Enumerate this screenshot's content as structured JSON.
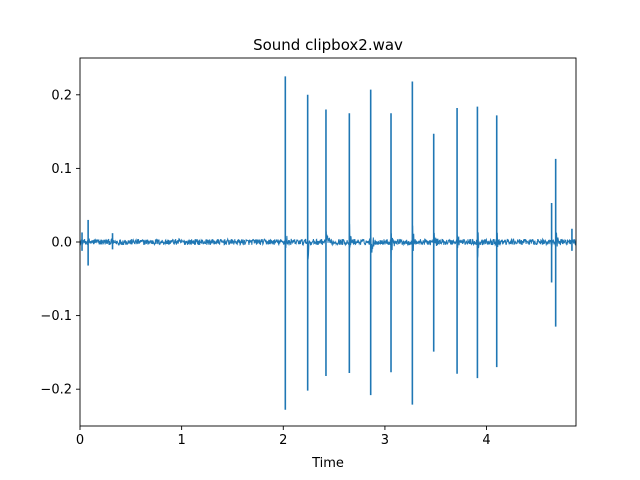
{
  "chart_data": {
    "type": "line",
    "title": "Sound clipbox2.wav",
    "xlabel": "Time",
    "ylabel": "",
    "xlim": [
      0,
      4.88
    ],
    "ylim": [
      -0.25,
      0.25
    ],
    "grid": false,
    "legend": "none",
    "xticks": [
      0,
      1,
      2,
      3,
      4
    ],
    "xtick_labels": [
      "0",
      "1",
      "2",
      "3",
      "4"
    ],
    "yticks": [
      -0.2,
      -0.1,
      0.0,
      0.1,
      0.2
    ],
    "ytick_labels": [
      "−0.2",
      "−0.1",
      "0.0",
      "0.1",
      "0.2"
    ],
    "series": [
      {
        "color": "#1f77b4",
        "noise_amplitude": 0.004,
        "spikes": [
          {
            "t": 0.02,
            "max": 0.013,
            "min": -0.012
          },
          {
            "t": 0.08,
            "max": 0.03,
            "min": -0.032
          },
          {
            "t": 0.32,
            "max": 0.012,
            "min": -0.01
          },
          {
            "t": 2.02,
            "max": 0.225,
            "min": -0.228
          },
          {
            "t": 2.24,
            "max": 0.2,
            "min": -0.202
          },
          {
            "t": 2.42,
            "max": 0.18,
            "min": -0.182
          },
          {
            "t": 2.65,
            "max": 0.175,
            "min": -0.178
          },
          {
            "t": 2.86,
            "max": 0.207,
            "min": -0.208
          },
          {
            "t": 3.06,
            "max": 0.175,
            "min": -0.177
          },
          {
            "t": 3.27,
            "max": 0.218,
            "min": -0.221
          },
          {
            "t": 3.48,
            "max": 0.147,
            "min": -0.149
          },
          {
            "t": 3.71,
            "max": 0.182,
            "min": -0.179
          },
          {
            "t": 3.91,
            "max": 0.184,
            "min": -0.185
          },
          {
            "t": 4.1,
            "max": 0.172,
            "min": -0.17
          },
          {
            "t": 4.64,
            "max": 0.053,
            "min": -0.055
          },
          {
            "t": 4.68,
            "max": 0.113,
            "min": -0.115
          },
          {
            "t": 4.84,
            "max": 0.018,
            "min": -0.012
          }
        ]
      }
    ]
  }
}
